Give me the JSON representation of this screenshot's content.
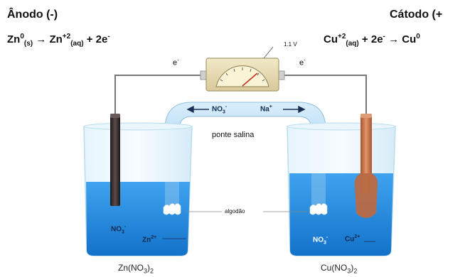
{
  "anode": {
    "title": "Ânodo (-)",
    "eq_left": "Zn",
    "eq_left_sup": "0",
    "eq_left_sub": "(s)",
    "arrow": "→",
    "eq_ion": "Zn",
    "eq_ion_sup": "+2",
    "eq_ion_sub": "(aq)",
    "eq_rest": "+ 2e",
    "eq_rest_sup": "-"
  },
  "cathode": {
    "title": "Cátodo (+",
    "eq_ion": "Cu",
    "eq_ion_sup": "+2",
    "eq_ion_sub": "(aq)",
    "eq_mid": "+ 2e",
    "eq_mid_sup": "-",
    "arrow": "→",
    "eq_right": "Cu",
    "eq_right_sup": "0"
  },
  "voltmeter": {
    "reading": "1.1 V"
  },
  "electrons": {
    "left": "e",
    "right": "e",
    "sup": "-"
  },
  "salt_bridge": {
    "anion": "NO",
    "anion_sub": "3",
    "anion_sup": "-",
    "cation": "Na",
    "cation_sup": "+",
    "label": "ponte salina"
  },
  "cotton_label": "algodão",
  "left_beaker": {
    "anion": "NO",
    "anion_sub": "3",
    "anion_sup": "-",
    "cation": "Zn",
    "cation_sup": "2+",
    "solution": "Zn(NO",
    "solution_sub": "3",
    "solution_close": ")",
    "solution_sub2": "2"
  },
  "right_beaker": {
    "anion": "NO",
    "anion_sub": "3",
    "anion_sup": "-",
    "cation": "Cu",
    "cation_sup": "2+",
    "solution": "Cu(NO",
    "solution_sub": "3",
    "solution_close": ")",
    "solution_sub2": "2"
  },
  "colors": {
    "solution": "#1e88e0",
    "glass": "#cfe8f7",
    "zinc": "#3a3030",
    "copper": "#c8734a",
    "voltmeter_body": "#e9ddb3"
  }
}
